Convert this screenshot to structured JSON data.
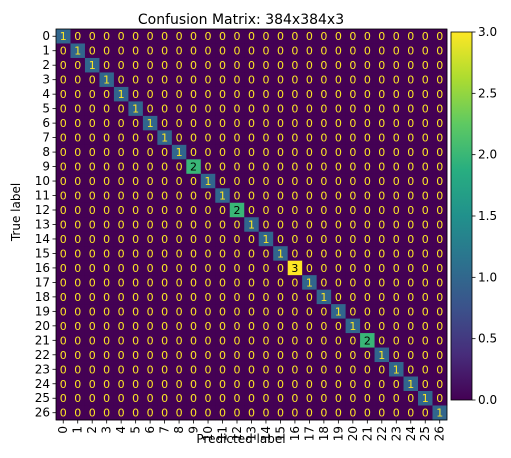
{
  "chart_data": {
    "type": "heatmap",
    "title": "Confusion Matrix: 384x384x3",
    "xlabel": "Predicted label",
    "ylabel": "True label",
    "labels": [
      "0",
      "1",
      "2",
      "3",
      "4",
      "5",
      "6",
      "7",
      "8",
      "9",
      "10",
      "11",
      "12",
      "13",
      "14",
      "15",
      "16",
      "17",
      "18",
      "19",
      "20",
      "21",
      "22",
      "23",
      "24",
      "25",
      "26"
    ],
    "diagonal": [
      1,
      1,
      1,
      1,
      1,
      1,
      1,
      1,
      1,
      2,
      1,
      1,
      2,
      1,
      1,
      1,
      3,
      1,
      1,
      1,
      1,
      2,
      1,
      1,
      1,
      1,
      1
    ],
    "off_diagonal_value": 0,
    "colorbar": {
      "min": 0.0,
      "max": 3.0,
      "ticks": [
        "0.0",
        "0.5",
        "1.0",
        "1.5",
        "2.0",
        "2.5",
        "3.0"
      ],
      "colormap": "viridis"
    },
    "colors": {
      "zero_cell": "#440154",
      "zero_text": "#fde725",
      "high_text": "#000000"
    }
  }
}
